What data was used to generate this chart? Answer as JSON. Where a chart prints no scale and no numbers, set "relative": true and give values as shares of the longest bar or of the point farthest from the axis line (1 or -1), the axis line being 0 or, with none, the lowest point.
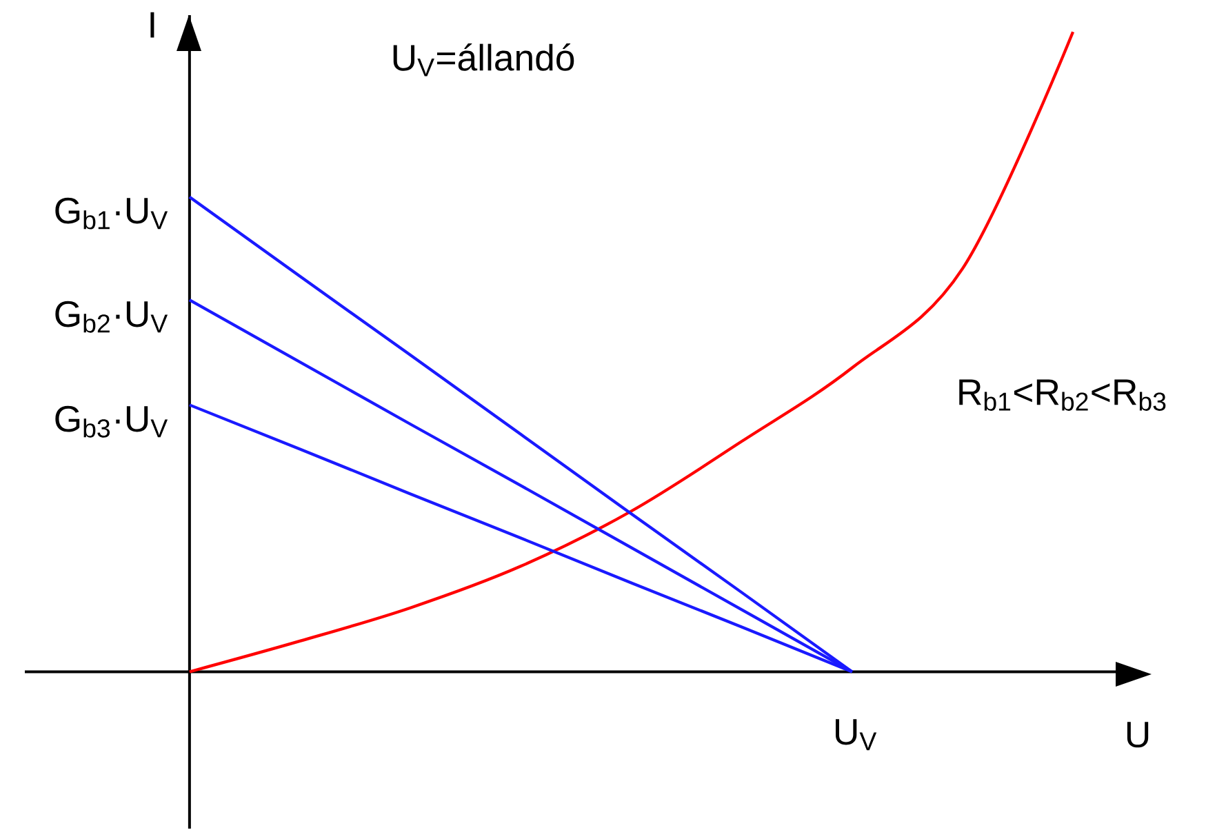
{
  "chart_data": {
    "type": "line",
    "relative": true,
    "xlabel": "U",
    "ylabel": "I",
    "categories": [
      null,
      null,
      null,
      null,
      null,
      null,
      null,
      null,
      null
    ],
    "series": [
      {
        "color": "#ff0000",
        "values": [
          0,
          0.048,
          0.1,
          0.165,
          0.251,
          0.36,
          0.475,
          0.63,
          1.0
        ]
      },
      {
        "color": "#1a1aff",
        "values": [
          0.742,
          0.618,
          0.495,
          0.371,
          0.247,
          0.124,
          0,
          null,
          null
        ]
      },
      {
        "color": "#1a1aff",
        "values": [
          0.581,
          0.484,
          0.387,
          0.291,
          0.194,
          0.097,
          0,
          null,
          null
        ]
      },
      {
        "color": "#1a1aff",
        "values": [
          0.417,
          0.348,
          0.278,
          0.209,
          0.139,
          0.07,
          0,
          null,
          null
        ]
      }
    ],
    "annotations": [
      "U$_{V}$=állandó",
      "R$_{b1}$<R$_{b2}$<R$_{b3}$",
      "U$_{V}$",
      "G$_{b1}$·U$_{V}$",
      "G$_{b2}$·U$_{V}$",
      "G$_{b3}$·U$_{V}$"
    ]
  }
}
